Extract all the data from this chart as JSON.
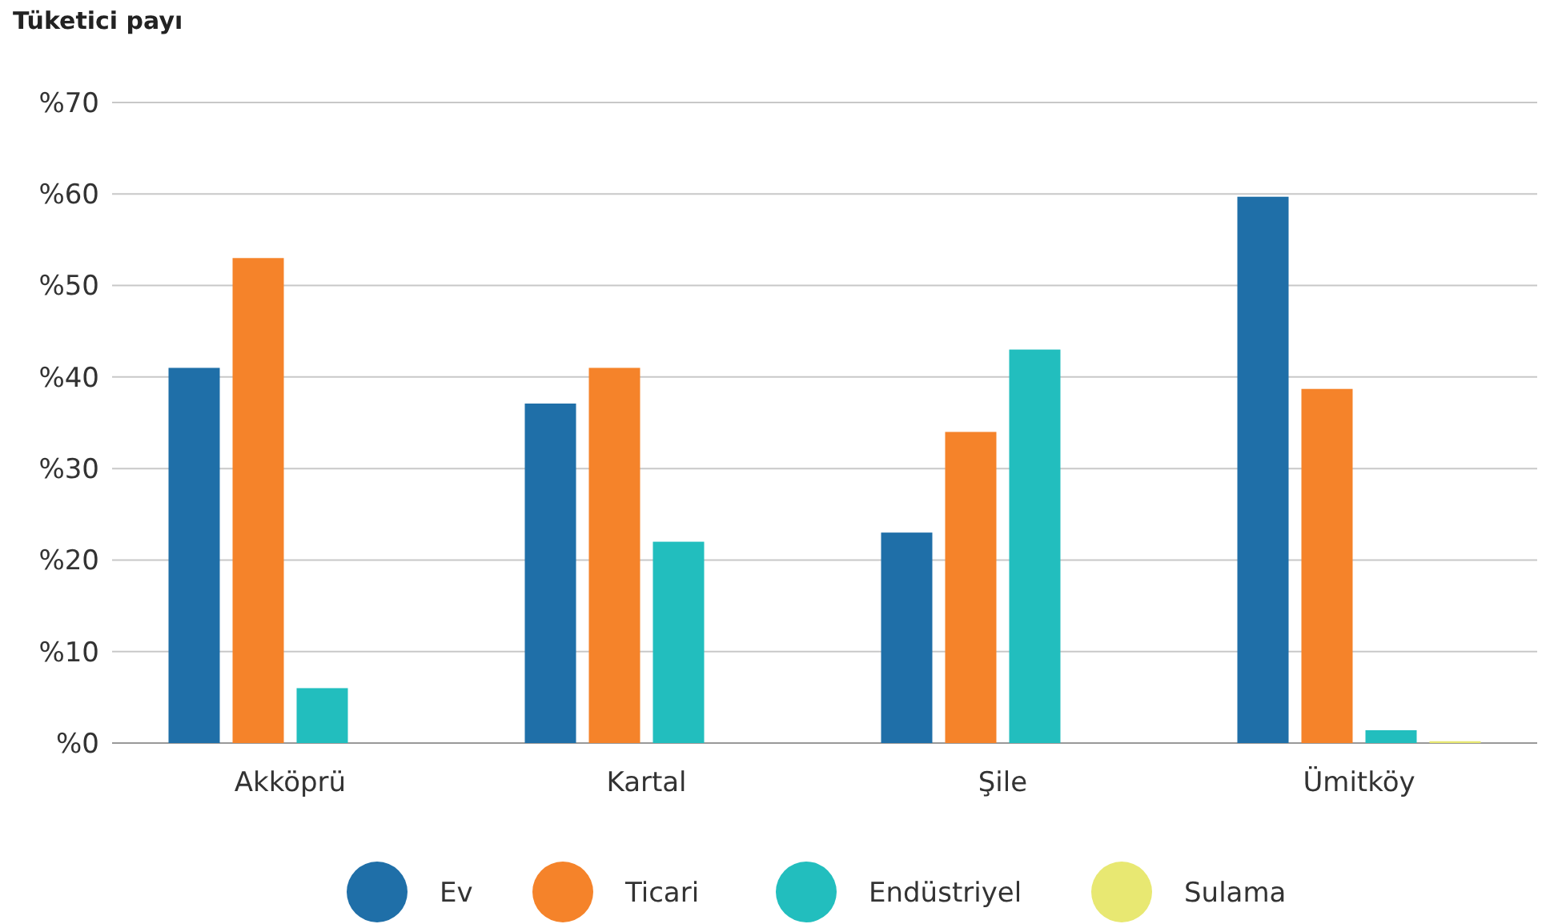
{
  "chart_data": {
    "type": "bar",
    "title": "Tüketici payı",
    "categories": [
      "Akköprü",
      "Kartal",
      "Şile",
      "Ümitköy"
    ],
    "series": [
      {
        "name": "Ev",
        "color": "#1f6fa8",
        "values": [
          41,
          37.1,
          23,
          59.7
        ]
      },
      {
        "name": "Ticari",
        "color": "#f5832a",
        "values": [
          53,
          41,
          34,
          38.7
        ]
      },
      {
        "name": "Endüstriyel",
        "color": "#22bebe",
        "values": [
          6,
          22,
          43,
          1.4
        ]
      },
      {
        "name": "Sulama",
        "color": "#e8e872",
        "values": [
          null,
          null,
          null,
          0.2
        ]
      }
    ],
    "ylim": [
      0,
      70
    ],
    "yticks": [
      {
        "value": 0,
        "label": "%0"
      },
      {
        "value": 10,
        "label": "%10"
      },
      {
        "value": 20,
        "label": "%20"
      },
      {
        "value": 30,
        "label": "%30"
      },
      {
        "value": 40,
        "label": "%40"
      },
      {
        "value": 50,
        "label": "%50"
      },
      {
        "value": 60,
        "label": "%60"
      },
      {
        "value": 70,
        "label": "%70"
      }
    ],
    "grid": "y",
    "legend": "bottom"
  }
}
